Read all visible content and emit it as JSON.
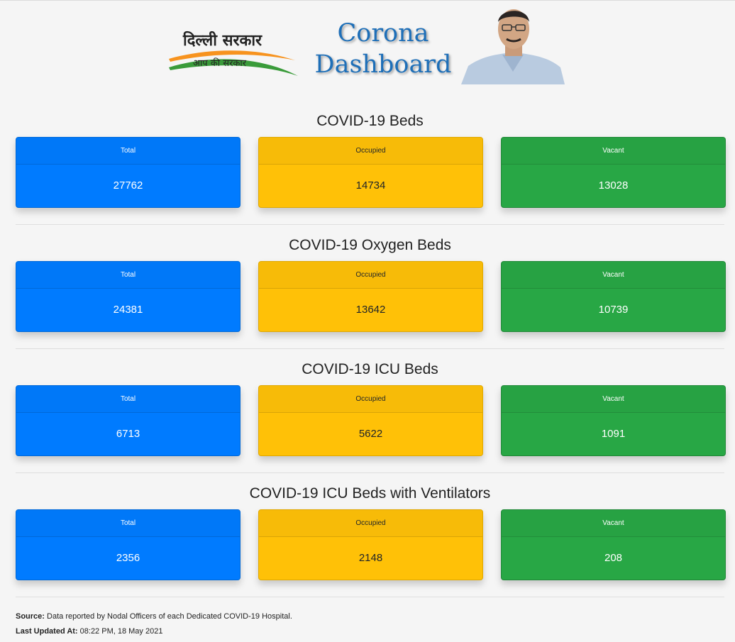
{
  "header": {
    "logo_text": "दिल्ली सरकार",
    "logo_tagline": "आप की सरकार",
    "title_line1": "Corona",
    "title_line2": "Dashboard"
  },
  "sections": [
    {
      "title": "COVID-19 Beds",
      "total_label": "Total",
      "total_value": "27762",
      "occupied_label": "Occupied",
      "occupied_value": "14734",
      "vacant_label": "Vacant",
      "vacant_value": "13028"
    },
    {
      "title": "COVID-19 Oxygen Beds",
      "total_label": "Total",
      "total_value": "24381",
      "occupied_label": "Occupied",
      "occupied_value": "13642",
      "vacant_label": "Vacant",
      "vacant_value": "10739"
    },
    {
      "title": "COVID-19 ICU Beds",
      "total_label": "Total",
      "total_value": "6713",
      "occupied_label": "Occupied",
      "occupied_value": "5622",
      "vacant_label": "Vacant",
      "vacant_value": "1091"
    },
    {
      "title": "COVID-19 ICU Beds with Ventilators",
      "total_label": "Total",
      "total_value": "2356",
      "occupied_label": "Occupied",
      "occupied_value": "2148",
      "vacant_label": "Vacant",
      "vacant_value": "208"
    }
  ],
  "footer": {
    "source_label": "Source:",
    "source_text": " Data reported by Nodal Officers of each Dedicated COVID-19 Hospital.",
    "updated_label": "Last Updated At:",
    "updated_text": " 08:22 PM, 18 May 2021"
  },
  "colors": {
    "total": "#007bff",
    "occupied": "#ffc107",
    "vacant": "#28a745",
    "title_blue": "#1e6fb8"
  }
}
